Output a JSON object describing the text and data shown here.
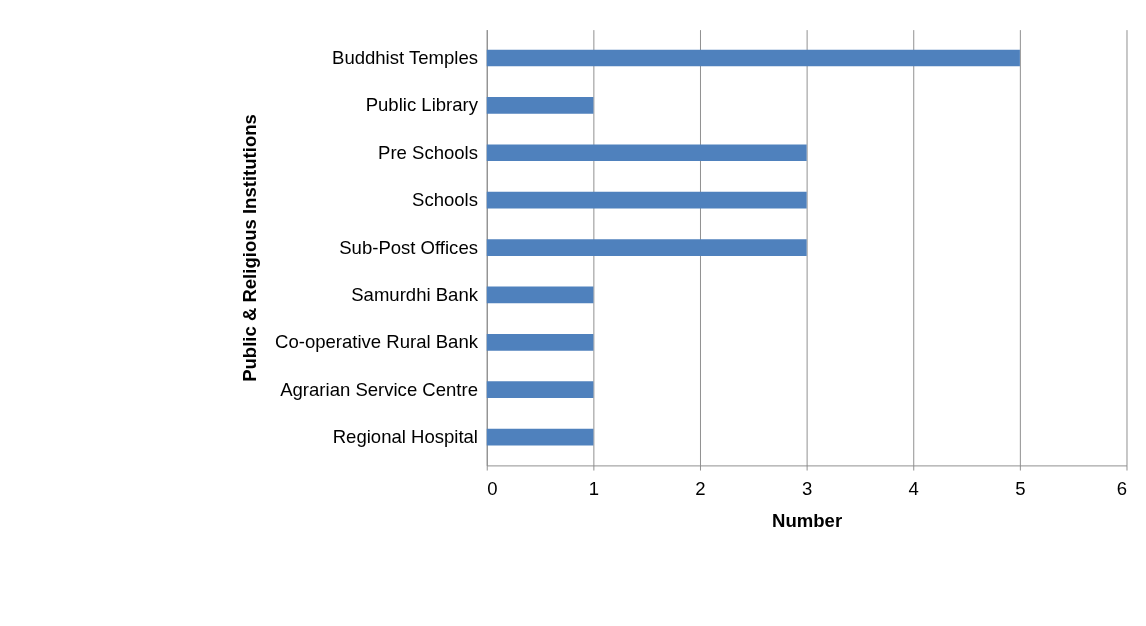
{
  "chart_data": {
    "type": "bar",
    "orientation": "horizontal",
    "categories": [
      "Buddhist Temples",
      "Public Library",
      "Pre Schools",
      "Schools",
      "Sub-Post Offices",
      "Samurdhi Bank",
      "Co-operative Rural Bank",
      "Agrarian Service Centre",
      "Regional Hospital"
    ],
    "values": [
      5,
      1,
      3,
      3,
      3,
      1,
      1,
      1,
      1
    ],
    "color": "#4f81bd",
    "xlim": [
      0,
      6
    ],
    "xticks": [
      0,
      1,
      2,
      3,
      4,
      5,
      6
    ],
    "grid": "x",
    "xlabel": "Number",
    "ylabel": "Public & Religious Institutions"
  }
}
